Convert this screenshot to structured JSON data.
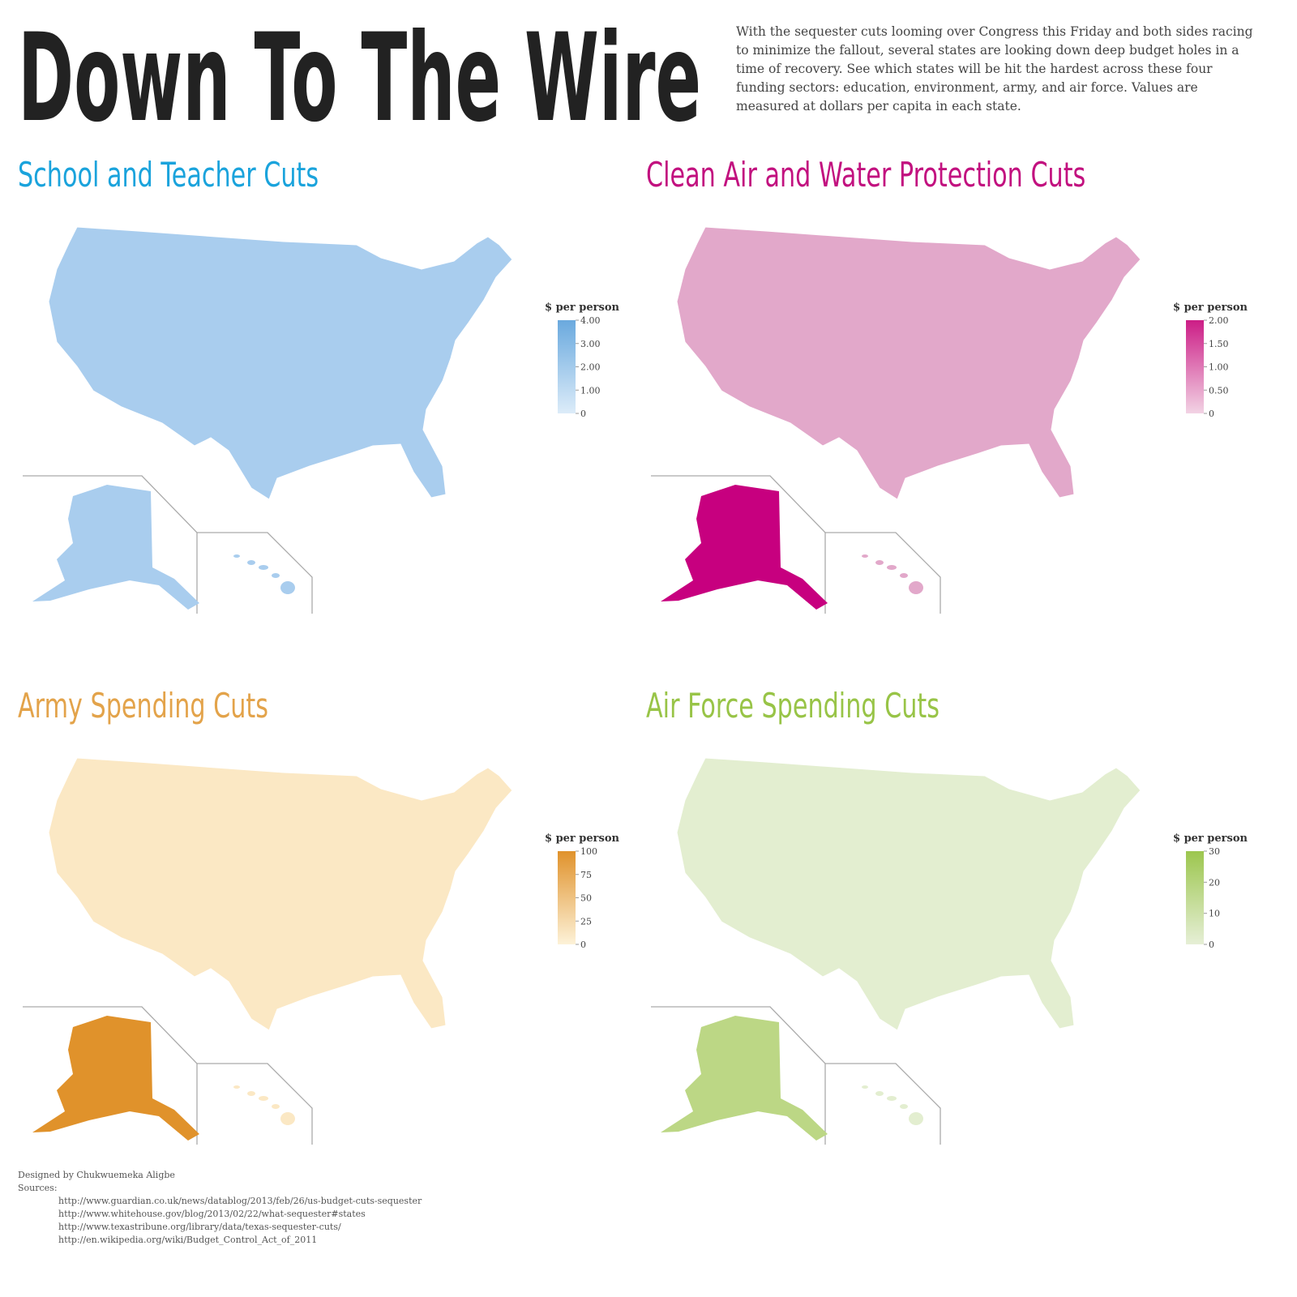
{
  "header": {
    "title": "Down To The Wire",
    "description": "With the sequester cuts looming over Congress this Friday and both sides racing to minimize the fallout, several states are looking down deep budget holes in a time of recovery. See which states will be hit the hardest across these four funding sectors: education, environment, army, and air force. Values are measured at dollars per capita in each state."
  },
  "panels": [
    {
      "title": "School and Teacher Cuts",
      "title_color": "#1aa3dc",
      "fill": "#a9cdee",
      "alaska_fill": "#a9cdee",
      "legend": {
        "title": "$ per person",
        "colors": [
          "#dcecf9",
          "#6aa9de"
        ],
        "range": [
          0,
          4
        ],
        "ticks": [
          0,
          {
            "value": 1,
            "label": "1.00"
          },
          {
            "value": 2,
            "label": "2.00"
          },
          {
            "value": 3,
            "label": "3.00"
          },
          {
            "value": 4,
            "label": "4.00"
          }
        ]
      }
    },
    {
      "title": "Clean Air and Water Protection Cuts",
      "title_color": "#c2117f",
      "fill": "#e2a8ca",
      "alaska_fill": "#c7007f",
      "legend": {
        "title": "$ per person",
        "colors": [
          "#f2d3e4",
          "#cc1d86"
        ],
        "range": [
          0,
          2
        ],
        "ticks": [
          0,
          {
            "value": 0.5,
            "label": "0.50"
          },
          {
            "value": 1,
            "label": "1.00"
          },
          {
            "value": 1.5,
            "label": "1.50"
          },
          {
            "value": 2,
            "label": "2.00"
          }
        ]
      }
    },
    {
      "title": "Army Spending Cuts",
      "title_color": "#e3a34a",
      "fill": "#fbe8c4",
      "alaska_fill": "#e0922b",
      "legend": {
        "title": "$ per person",
        "colors": [
          "#fdf2d8",
          "#e0922b"
        ],
        "range": [
          0,
          100
        ],
        "ticks": [
          0,
          25,
          50,
          75,
          100
        ]
      }
    },
    {
      "title": "Air Force Spending Cuts",
      "title_color": "#98c447",
      "fill": "#e3eed0",
      "alaska_fill": "#bcd785",
      "legend": {
        "title": "$ per person",
        "colors": [
          "#e6efd6",
          "#9cc64e"
        ],
        "range": [
          0,
          30
        ],
        "ticks": [
          0,
          10,
          20,
          30
        ]
      }
    }
  ],
  "footer": {
    "credit": "Designed by Chukwuemeka Aligbe",
    "sources_label": "Sources:",
    "sources": [
      "http://www.guardian.co.uk/news/datablog/2013/feb/26/us-budget-cuts-sequester",
      "http://www.whitehouse.gov/blog/2013/02/22/what-sequester#states",
      "http://www.texastribune.org/library/data/texas-sequester-cuts/",
      "http://en.wikipedia.org/wiki/Budget_Control_Act_of_2011"
    ]
  }
}
